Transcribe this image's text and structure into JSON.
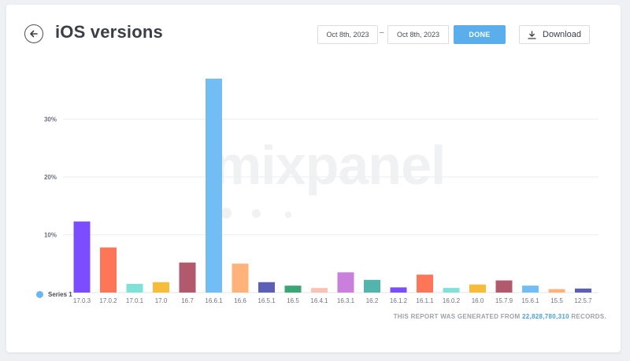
{
  "header": {
    "title": "iOS versions",
    "date_from": "Oct 8th, 2023",
    "date_separator": "–",
    "date_to": "Oct 8th, 2023",
    "done_label": "DONE",
    "download_label": "Download"
  },
  "watermark": "mixpanel",
  "legend": {
    "series_label": "Series 1"
  },
  "footer": {
    "prefix": "THIS REPORT WAS GENERATED FROM",
    "records": "22,828,780,310",
    "suffix": "RECORDS."
  },
  "colors": {
    "accent": "#5aaeec",
    "series": "#6bb6f0"
  },
  "chart_data": {
    "type": "bar",
    "ylabel": "",
    "xlabel": "",
    "ylim": [
      0,
      37
    ],
    "yticks": [
      "10%",
      "20%",
      "30%"
    ],
    "ytick_values": [
      10,
      20,
      30
    ],
    "grid": true,
    "legend": "bottom-left",
    "categories": [
      "17.0.3",
      "17.0.2",
      "17.0.1",
      "17.0",
      "16.7",
      "16.6.1",
      "16.6",
      "16.5.1",
      "16.5",
      "16.4.1",
      "16.3.1",
      "16.2",
      "16.1.2",
      "16.1.1",
      "16.0.2",
      "16.0",
      "15.7.9",
      "15.6.1",
      "15.5",
      "12.5.7"
    ],
    "series": [
      {
        "name": "Series 1",
        "values": [
          12.3,
          7.8,
          1.5,
          1.8,
          5.2,
          37.0,
          5.0,
          1.8,
          1.2,
          0.8,
          3.5,
          2.2,
          0.9,
          3.1,
          0.8,
          1.4,
          2.1,
          1.2,
          0.6,
          0.7
        ],
        "colors": [
          "#7c4dff",
          "#ff7557",
          "#80e1d9",
          "#f8bc3b",
          "#b2596e",
          "#72bef4",
          "#ffb27a",
          "#5c5fb5",
          "#3aa676",
          "#fdc1b5",
          "#c97fdb",
          "#52b4ad",
          "#7c4dff",
          "#ff7557",
          "#80e1d9",
          "#f8bc3b",
          "#b2596e",
          "#72bef4",
          "#ffb27a",
          "#5c5fb5"
        ]
      }
    ]
  }
}
